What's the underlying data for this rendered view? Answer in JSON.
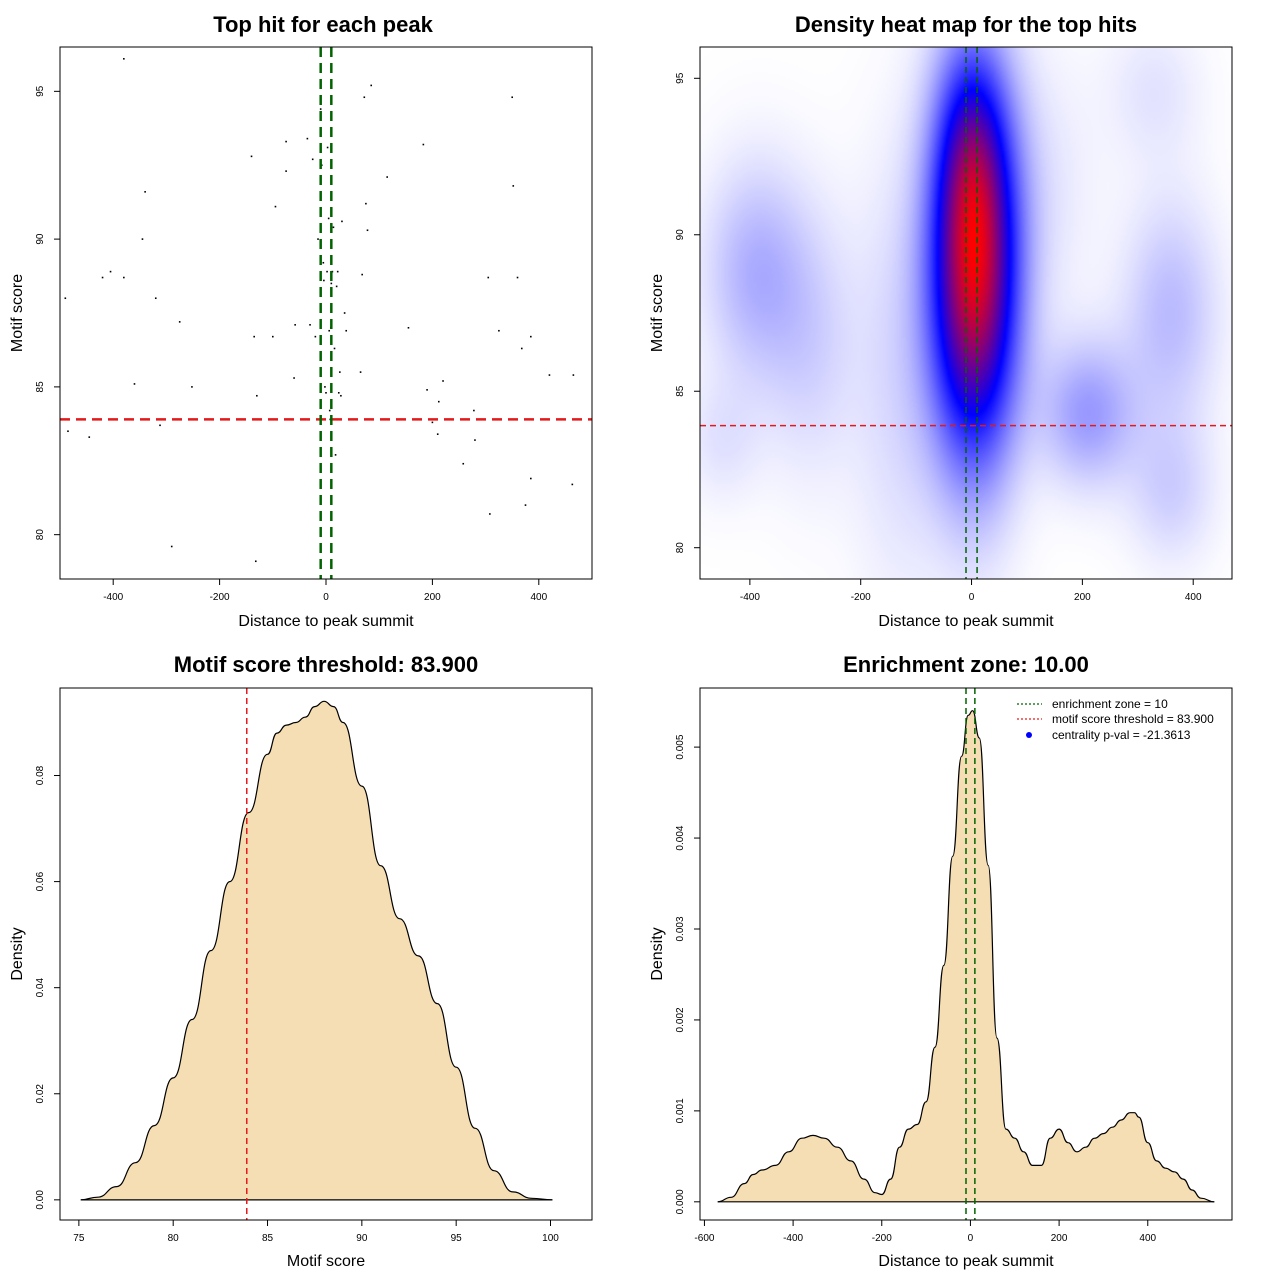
{
  "colors": {
    "threshold_line": "#e31a1c",
    "zone_line": "#006400",
    "density_fill": "#f5deb3",
    "points": "#000000",
    "legend_dot": "#0000ff"
  },
  "legend": {
    "zone": "enrichment zone = 10",
    "threshold": "motif score threshold = 83.900",
    "pval": "centrality p-val = -21.3613"
  },
  "chart_data": [
    {
      "type": "scatter",
      "title": "Top hit for each peak",
      "xlabel": "Distance to peak summit",
      "ylabel": "Motif score",
      "xlim": [
        -500,
        500
      ],
      "ylim": [
        78.5,
        96.5
      ],
      "xticks": [
        -400,
        -200,
        0,
        200,
        400
      ],
      "yticks": [
        80,
        85,
        90,
        95
      ],
      "threshold_y": 83.9,
      "zone_x": [
        -10,
        10
      ],
      "points": [
        [
          -380,
          96.1
        ],
        [
          -490,
          88.0
        ],
        [
          -485,
          83.5
        ],
        [
          -445,
          83.3
        ],
        [
          -420,
          88.7
        ],
        [
          -405,
          88.9
        ],
        [
          -380,
          88.7
        ],
        [
          -360,
          85.1
        ],
        [
          -345,
          90.0
        ],
        [
          -340,
          91.6
        ],
        [
          -320,
          88.0
        ],
        [
          -312,
          83.7
        ],
        [
          -290,
          79.6
        ],
        [
          -275,
          87.2
        ],
        [
          -252,
          85.0
        ],
        [
          -140,
          92.8
        ],
        [
          -135,
          86.7
        ],
        [
          -130,
          84.7
        ],
        [
          -132,
          79.1
        ],
        [
          -100,
          86.7
        ],
        [
          -95,
          91.1
        ],
        [
          -75,
          93.3
        ],
        [
          -75,
          92.3
        ],
        [
          -60,
          85.3
        ],
        [
          -58,
          87.1
        ],
        [
          -35,
          93.4
        ],
        [
          -30,
          87.1
        ],
        [
          -25,
          92.7
        ],
        [
          -20,
          86.7
        ],
        [
          -15,
          90.0
        ],
        [
          -10,
          94.4
        ],
        [
          -8,
          92.5
        ],
        [
          -5,
          89.2
        ],
        [
          -4,
          88.6
        ],
        [
          -2,
          85.0
        ],
        [
          0,
          84.8
        ],
        [
          2,
          88.9
        ],
        [
          3,
          93.1
        ],
        [
          5,
          90.7
        ],
        [
          6,
          86.9
        ],
        [
          7,
          84.2
        ],
        [
          8,
          83.9
        ],
        [
          9,
          87.0
        ],
        [
          10,
          88.5
        ],
        [
          12,
          88.9
        ],
        [
          14,
          90.4
        ],
        [
          16,
          86.3
        ],
        [
          18,
          82.7
        ],
        [
          20,
          88.4
        ],
        [
          22,
          88.9
        ],
        [
          24,
          84.8
        ],
        [
          26,
          85.5
        ],
        [
          28,
          84.7
        ],
        [
          30,
          90.6
        ],
        [
          35,
          87.5
        ],
        [
          38,
          86.9
        ],
        [
          65,
          85.5
        ],
        [
          68,
          88.8
        ],
        [
          72,
          94.8
        ],
        [
          75,
          91.2
        ],
        [
          78,
          90.3
        ],
        [
          85,
          95.2
        ],
        [
          115,
          92.1
        ],
        [
          155,
          87.0
        ],
        [
          183,
          93.2
        ],
        [
          190,
          84.9
        ],
        [
          200,
          83.8
        ],
        [
          210,
          83.4
        ],
        [
          212,
          84.5
        ],
        [
          220,
          85.2
        ],
        [
          258,
          82.4
        ],
        [
          278,
          84.2
        ],
        [
          280,
          83.2
        ],
        [
          305,
          88.7
        ],
        [
          308,
          80.7
        ],
        [
          325,
          86.9
        ],
        [
          350,
          94.8
        ],
        [
          352,
          91.8
        ],
        [
          360,
          88.7
        ],
        [
          368,
          86.3
        ],
        [
          375,
          81.0
        ],
        [
          385,
          86.7
        ],
        [
          385,
          81.9
        ],
        [
          420,
          85.4
        ],
        [
          465,
          85.4
        ],
        [
          463,
          81.7
        ]
      ]
    },
    {
      "type": "heatmap",
      "title": "Density heat map for the top hits",
      "xlabel": "Distance to peak summit",
      "ylabel": "Motif score",
      "xlim": [
        -490,
        470
      ],
      "ylim": [
        79,
        96
      ],
      "xticks": [
        -400,
        -200,
        0,
        200,
        400
      ],
      "yticks": [
        80,
        85,
        90,
        95
      ],
      "threshold_y": 83.9,
      "zone_x": [
        -10,
        10
      ],
      "blobs": [
        {
          "x": 5,
          "y": 88.6,
          "sx": 55,
          "sy": 4.0,
          "w": 1.0
        },
        {
          "x": 0,
          "y": 92.8,
          "sx": 45,
          "sy": 2.6,
          "w": 0.3
        },
        {
          "x": -390,
          "y": 88.8,
          "sx": 65,
          "sy": 2.4,
          "w": 0.17
        },
        {
          "x": -290,
          "y": 86.5,
          "sx": 60,
          "sy": 3.0,
          "w": 0.09
        },
        {
          "x": 210,
          "y": 84.3,
          "sx": 60,
          "sy": 1.6,
          "w": 0.22
        },
        {
          "x": 360,
          "y": 87.5,
          "sx": 60,
          "sy": 2.5,
          "w": 0.15
        },
        {
          "x": 360,
          "y": 81.8,
          "sx": 55,
          "sy": 1.6,
          "w": 0.1
        },
        {
          "x": -130,
          "y": 85.5,
          "sx": 60,
          "sy": 5.0,
          "w": 0.08
        },
        {
          "x": 330,
          "y": 94.6,
          "sx": 60,
          "sy": 1.6,
          "w": 0.06
        },
        {
          "x": -450,
          "y": 83.4,
          "sx": 50,
          "sy": 1.4,
          "w": 0.06
        },
        {
          "x": 130,
          "y": 91.5,
          "sx": 70,
          "sy": 3.0,
          "w": 0.05
        }
      ]
    },
    {
      "type": "area",
      "title": "Motif score threshold: 83.900",
      "xlabel": "Motif score",
      "ylabel": "Density",
      "xlim": [
        74,
        102.2
      ],
      "ylim": [
        -0.0038,
        0.0965
      ],
      "xticks": [
        75,
        80,
        85,
        90,
        95,
        100
      ],
      "yticks": [
        0.0,
        0.02,
        0.04,
        0.06,
        0.08
      ],
      "ytick_labels": [
        "0.00",
        "0.02",
        "0.04",
        "0.06",
        "0.08"
      ],
      "threshold_x": 83.9,
      "x": [
        75.1,
        76,
        77,
        78,
        79,
        80,
        81,
        82,
        83,
        84,
        85,
        85.5,
        86,
        86.5,
        87,
        87.5,
        88,
        88.5,
        89,
        90,
        91,
        92,
        93,
        94,
        95,
        96,
        97,
        98,
        99,
        100.1
      ],
      "y": [
        0.0,
        0.0005,
        0.0025,
        0.007,
        0.014,
        0.023,
        0.034,
        0.047,
        0.06,
        0.073,
        0.084,
        0.088,
        0.0895,
        0.09,
        0.091,
        0.093,
        0.094,
        0.093,
        0.09,
        0.078,
        0.063,
        0.053,
        0.046,
        0.037,
        0.025,
        0.0135,
        0.0055,
        0.0015,
        0.0003,
        0.0
      ]
    },
    {
      "type": "area",
      "title": "Enrichment zone: 10.00",
      "xlabel": "Distance to peak summit",
      "ylabel": "Density",
      "xlim": [
        -610,
        590
      ],
      "ylim": [
        -0.0002,
        0.00565
      ],
      "xticks": [
        -600,
        -400,
        -200,
        0,
        200,
        400
      ],
      "yticks": [
        0.0,
        0.001,
        0.002,
        0.003,
        0.004,
        0.005
      ],
      "ytick_labels": [
        "0.000",
        "0.001",
        "0.002",
        "0.003",
        "0.004",
        "0.005"
      ],
      "zone_x": [
        -10,
        10
      ],
      "x": [
        -570,
        -540,
        -510,
        -490,
        -470,
        -440,
        -410,
        -380,
        -355,
        -330,
        -300,
        -270,
        -240,
        -215,
        -200,
        -180,
        -160,
        -140,
        -120,
        -100,
        -80,
        -60,
        -40,
        -20,
        -5,
        5,
        20,
        40,
        60,
        80,
        100,
        120,
        140,
        160,
        180,
        200,
        220,
        240,
        260,
        280,
        300,
        320,
        340,
        360,
        370,
        380,
        400,
        420,
        440,
        460,
        480,
        500,
        520,
        550
      ],
      "y": [
        0.0,
        5e-05,
        0.0002,
        0.0003,
        0.00035,
        0.0004,
        0.00055,
        0.0007,
        0.00073,
        0.0007,
        0.0006,
        0.00045,
        0.00025,
        0.0001,
        8e-05,
        0.00025,
        0.0006,
        0.0008,
        0.00085,
        0.0011,
        0.0017,
        0.0026,
        0.0038,
        0.0049,
        0.00535,
        0.0054,
        0.0051,
        0.0037,
        0.0018,
        0.0008,
        0.0007,
        0.00055,
        0.0004,
        0.0004,
        0.0007,
        0.0008,
        0.00065,
        0.00055,
        0.0006,
        0.0007,
        0.00075,
        0.00082,
        0.0009,
        0.00098,
        0.00098,
        0.00093,
        0.00065,
        0.00045,
        0.00037,
        0.00033,
        0.00025,
        0.00013,
        4e-05,
        0.0
      ]
    }
  ]
}
